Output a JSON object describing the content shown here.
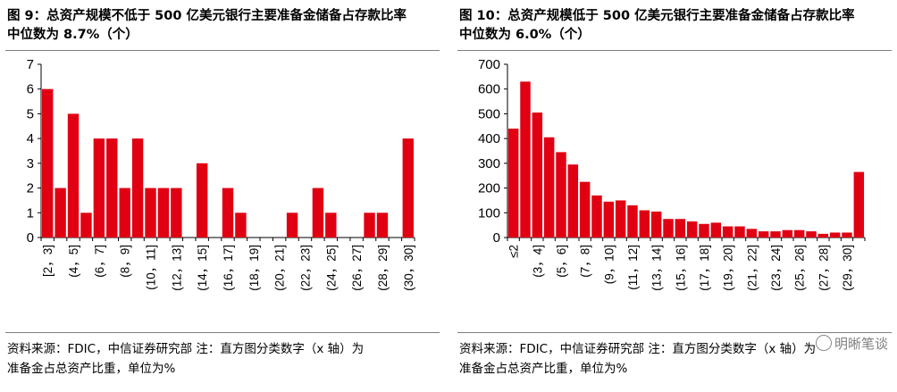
{
  "chart_data": [
    {
      "type": "bar",
      "title_lines": [
        "图 9：总资产规模不低于 500 亿美元银行主要准备金储备占存款比率",
        "中位数为 8.7%（个）"
      ],
      "categories": [
        "[2，3]",
        "(3，4]",
        "(4，5]",
        "(5，6]",
        "(6，7]",
        "(7，8]",
        "(8，9]",
        "(9，10]",
        "(10，11]",
        "(11，12]",
        "(12，13]",
        "(13，14]",
        "(14，15]",
        "(15，16]",
        "(16，17]",
        "(17，18]",
        "(18，19]",
        "(19，20]",
        "(20，21]",
        "(21，22]",
        "(22，23]",
        "(23，24]",
        "(24，25]",
        "(25，26]",
        "(26，27]",
        "(27，28]",
        "(28，29]",
        "(29，30]",
        "(30，30]"
      ],
      "xtick_labels": [
        "[2，3]",
        "(4，5]",
        "(6，7]",
        "(8，9]",
        "(10，11]",
        "(12，13]",
        "(14，15]",
        "(16，17]",
        "(18，19]",
        "(20，21]",
        "(22，23]",
        "(24，25]",
        "(26，27]",
        "(28，29]",
        "(30，30]"
      ],
      "values": [
        6,
        2,
        5,
        1,
        4,
        4,
        2,
        4,
        2,
        2,
        2,
        0,
        3,
        0,
        2,
        1,
        0,
        0,
        0,
        1,
        0,
        2,
        1,
        0,
        0,
        1,
        1,
        0,
        4
      ],
      "yticks": [
        0,
        1,
        2,
        3,
        4,
        5,
        6,
        7
      ],
      "ylim": [
        0,
        7
      ],
      "color": "#e00012",
      "grid": false,
      "source_lines": [
        "资料来源：FDIC，中信证券研究部   注：直方图分类数字（x 轴）为",
        "准备金占总资产比重，单位为%"
      ]
    },
    {
      "type": "bar",
      "title_lines": [
        "图 10：总资产规模低于 500 亿美元银行主要准备金储备占存款比率",
        "中位数为 6.0%（个）"
      ],
      "categories": [
        "≤2",
        "(2，3]",
        "(3，4]",
        "(4，5]",
        "(5，6]",
        "(6，7]",
        "(7，8]",
        "(8，9]",
        "(9，10]",
        "(10，11]",
        "(11，12]",
        "(12，13]",
        "(13，14]",
        "(14，15]",
        "(15，16]",
        "(16，17]",
        "(17，18]",
        "(18，19]",
        "(19，20]",
        "(20，21]",
        "(21，22]",
        "(22，23]",
        "(23，24]",
        "(24，25]",
        "(25，26]",
        "(26，27]",
        "(27，28]",
        "(28，29]",
        "(29，30]",
        "＞30"
      ],
      "xtick_labels": [
        "≤2",
        "(3，4]",
        "(5，6]",
        "(7，8]",
        "(9，10]",
        "(11，12]",
        "(13，14]",
        "(15，16]",
        "(17，18]",
        "(19，20]",
        "(21，22]",
        "(23，24]",
        "(25，26]",
        "(27，28]",
        "(29，30]"
      ],
      "values": [
        440,
        630,
        505,
        405,
        345,
        295,
        225,
        170,
        145,
        150,
        130,
        110,
        105,
        75,
        75,
        65,
        55,
        60,
        45,
        45,
        35,
        25,
        25,
        30,
        30,
        25,
        15,
        20,
        20,
        265
      ],
      "yticks": [
        0,
        100,
        200,
        300,
        400,
        500,
        600,
        700
      ],
      "ylim": [
        0,
        700
      ],
      "color": "#e00012",
      "grid": false,
      "source_lines": [
        "资料来源：FDIC，中信证券研究部   注：直方图分类数字（x 轴）为",
        "准备金占总资产比重，单位为%"
      ]
    }
  ],
  "watermark": "明晰笔谈"
}
